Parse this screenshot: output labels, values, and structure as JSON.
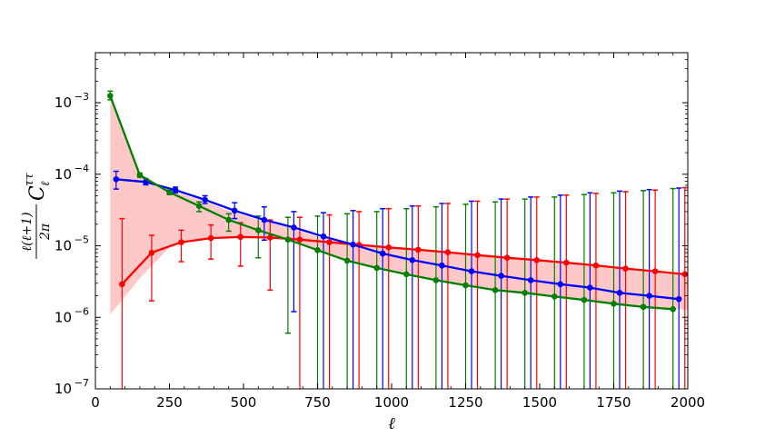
{
  "chart_data": {
    "type": "line",
    "title": "",
    "xlabel": "ℓ",
    "ylabel": "ℓ(ℓ+1)/2π C_ℓ^ττ",
    "xlim": [
      0,
      2000
    ],
    "ylim": [
      1e-07,
      0.005
    ],
    "yscale": "log",
    "grid": false,
    "legend": "none",
    "x_ticks": [
      0,
      250,
      500,
      750,
      1000,
      1250,
      1500,
      1750,
      2000
    ],
    "x_tick_labels": [
      "0",
      "250",
      "500",
      "750",
      "1000",
      "1250",
      "1500",
      "1750",
      "2000"
    ],
    "y_ticks": [
      1e-07,
      1e-06,
      1e-05,
      0.0001,
      0.001
    ],
    "y_tick_labels": [
      "10^-7",
      "10^-6",
      "10^-5",
      "10^-4",
      "10^-3"
    ],
    "series": [
      {
        "color": "#ff0000",
        "x": [
          90,
          190,
          290,
          390,
          490,
          590,
          690,
          790,
          890,
          990,
          1090,
          1190,
          1290,
          1390,
          1490,
          1590,
          1690,
          1790,
          1890,
          1990
        ],
        "y": [
          2.9e-06,
          8e-06,
          1.12e-05,
          1.28e-05,
          1.33e-05,
          1.3e-05,
          1.22e-05,
          1.12e-05,
          1.03e-05,
          9.5e-06,
          8.8e-06,
          8.1e-06,
          7.4e-06,
          6.8e-06,
          6.3e-06,
          5.8e-06,
          5.3e-06,
          4.8e-06,
          4.4e-06,
          4e-06
        ],
        "err_low": [
          1e-07,
          1.7e-06,
          6e-06,
          6.5e-06,
          5.2e-06,
          2.4e-06,
          1e-07,
          1e-07,
          1e-07,
          1e-07,
          1e-07,
          1e-07,
          1e-07,
          1e-07,
          1e-07,
          1e-07,
          1e-07,
          1e-07,
          1e-07,
          1e-07
        ],
        "err_high": [
          2.4e-05,
          1.4e-05,
          1.65e-05,
          1.95e-05,
          2.1e-05,
          2.3e-05,
          2.5e-05,
          2.7e-05,
          3e-05,
          3.3e-05,
          3.6e-05,
          3.9e-05,
          4.2e-05,
          4.5e-05,
          4.8e-05,
          5.1e-05,
          5.4e-05,
          5.7e-05,
          6e-05,
          6.5e-05
        ]
      },
      {
        "color": "#0000ff",
        "x": [
          70,
          170,
          270,
          370,
          470,
          570,
          670,
          770,
          870,
          970,
          1070,
          1170,
          1270,
          1370,
          1470,
          1570,
          1670,
          1770,
          1870,
          1970
        ],
        "y": [
          8.5e-05,
          7.8e-05,
          6e-05,
          4.4e-05,
          3.1e-05,
          2.3e-05,
          1.8e-05,
          1.35e-05,
          1.04e-05,
          7.8e-06,
          6.3e-06,
          5.3e-06,
          4.4e-06,
          3.8e-06,
          3.3e-06,
          2.9e-06,
          2.6e-06,
          2.2e-06,
          2e-06,
          1.8e-06
        ],
        "err_low": [
          6.2e-05,
          7.1e-05,
          5.5e-05,
          3.9e-05,
          2.4e-05,
          1.2e-05,
          1.2e-06,
          1e-07,
          1e-07,
          1e-07,
          1e-07,
          1e-07,
          1e-07,
          1e-07,
          1e-07,
          1e-07,
          1e-07,
          1e-07,
          1e-07,
          1e-07
        ],
        "err_high": [
          0.00011,
          8.7e-05,
          6.6e-05,
          5e-05,
          4e-05,
          3.5e-05,
          3e-05,
          2.9e-05,
          3.1e-05,
          3.3e-05,
          3.6e-05,
          3.9e-05,
          4.2e-05,
          4.5e-05,
          4.8e-05,
          5.1e-05,
          5.5e-05,
          5.8e-05,
          6.1e-05,
          6.4e-05
        ]
      },
      {
        "color": "#008000",
        "x": [
          50,
          150,
          250,
          350,
          450,
          550,
          650,
          750,
          850,
          950,
          1050,
          1150,
          1250,
          1350,
          1450,
          1550,
          1650,
          1750,
          1850,
          1950
        ],
        "y": [
          0.00125,
          9.7e-05,
          5.6e-05,
          3.6e-05,
          2.3e-05,
          1.65e-05,
          1.22e-05,
          8.7e-06,
          6.2e-06,
          4.9e-06,
          4e-06,
          3.3e-06,
          2.8e-06,
          2.4e-06,
          2.2e-06,
          1.95e-06,
          1.75e-06,
          1.55e-06,
          1.4e-06,
          1.3e-06
        ],
        "err_low": [
          0.0011,
          9.1e-05,
          5.2e-05,
          3e-05,
          1.6e-05,
          6.8e-06,
          6e-07,
          1e-07,
          1e-07,
          1e-07,
          1e-07,
          1e-07,
          1e-07,
          1e-07,
          1e-07,
          1e-07,
          1e-07,
          1e-07,
          1e-07,
          1e-07
        ],
        "err_high": [
          0.00145,
          0.000104,
          6e-05,
          4.1e-05,
          2.8e-05,
          2.6e-05,
          2.5e-05,
          2.6e-05,
          2.8e-05,
          3e-05,
          3.3e-05,
          3.5e-05,
          3.8e-05,
          4.1e-05,
          4.5e-05,
          4.8e-05,
          5.2e-05,
          5.5e-05,
          5.9e-05,
          6.3e-05
        ]
      }
    ],
    "band": {
      "color": "#ffb6b6",
      "x": [
        50,
        150,
        250,
        350,
        450,
        550,
        650,
        750,
        850,
        950,
        1050,
        1150,
        1250,
        1350,
        1450,
        1550,
        1650,
        1750,
        1850,
        1950,
        2000
      ],
      "upper": [
        0.00125,
        9.7e-05,
        6e-05,
        4.4e-05,
        3.1e-05,
        2.3e-05,
        1.8e-05,
        1.35e-05,
        1.08e-05,
        9.6e-06,
        8.9e-06,
        8.2e-06,
        7.5e-06,
        6.9e-06,
        6.3e-06,
        5.8e-06,
        5.3e-06,
        4.8e-06,
        4.4e-06,
        4.05e-06,
        3.9e-06
      ],
      "lower": [
        1.1e-06,
        3.5e-06,
        9.5e-06,
        1.22e-05,
        1.3e-05,
        1.3e-05,
        1.22e-05,
        8.7e-06,
        6.2e-06,
        4.9e-06,
        4e-06,
        3.3e-06,
        2.8e-06,
        2.4e-06,
        2.2e-06,
        1.95e-06,
        1.75e-06,
        1.55e-06,
        1.4e-06,
        1.3e-06,
        1.28e-06
      ]
    }
  }
}
